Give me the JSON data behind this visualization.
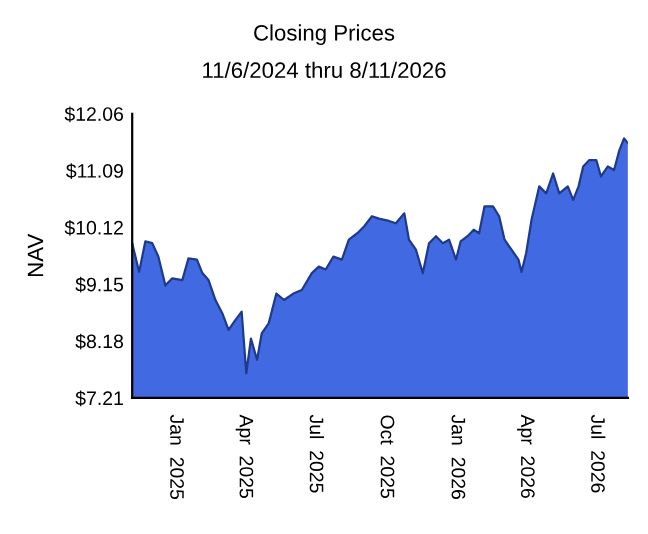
{
  "chart_data": {
    "type": "area",
    "title": "Closing Prices",
    "subtitle": "11/6/2024 thru 8/11/2026",
    "ylabel": "NAV",
    "x": [
      "2024-11-06",
      "2024-11-15",
      "2024-11-23",
      "2024-12-02",
      "2024-12-10",
      "2024-12-19",
      "2024-12-28",
      "2025-01-10",
      "2025-01-18",
      "2025-01-29",
      "2025-02-05",
      "2025-02-13",
      "2025-02-22",
      "2025-03-03",
      "2025-03-11",
      "2025-03-20",
      "2025-03-28",
      "2025-04-03",
      "2025-04-09",
      "2025-04-17",
      "2025-04-23",
      "2025-05-02",
      "2025-05-12",
      "2025-05-22",
      "2025-06-03",
      "2025-06-14",
      "2025-06-27",
      "2025-07-06",
      "2025-07-15",
      "2025-07-25",
      "2025-08-05",
      "2025-08-14",
      "2025-08-25",
      "2025-09-03",
      "2025-09-13",
      "2025-09-22",
      "2025-10-05",
      "2025-10-14",
      "2025-10-25",
      "2025-10-31",
      "2025-11-09",
      "2025-11-18",
      "2025-11-26",
      "2025-12-05",
      "2025-12-14",
      "2025-12-22",
      "2025-12-31",
      "2026-01-06",
      "2026-01-15",
      "2026-01-23",
      "2026-01-30",
      "2026-02-06",
      "2026-02-17",
      "2026-02-25",
      "2026-03-04",
      "2026-03-13",
      "2026-03-22",
      "2026-03-26",
      "2026-04-01",
      "2026-04-08",
      "2026-04-18",
      "2026-04-27",
      "2026-05-06",
      "2026-05-14",
      "2026-05-25",
      "2026-06-01",
      "2026-06-08",
      "2026-06-14",
      "2026-06-22",
      "2026-07-01",
      "2026-07-07",
      "2026-07-16",
      "2026-07-24",
      "2026-07-31",
      "2026-08-06",
      "2026-08-11"
    ],
    "series": [
      {
        "color": "#4169e1",
        "values": [
          9.85,
          9.36,
          9.88,
          9.85,
          9.62,
          9.13,
          9.25,
          9.22,
          9.59,
          9.57,
          9.34,
          9.22,
          8.88,
          8.65,
          8.37,
          8.54,
          8.68,
          7.63,
          8.22,
          7.86,
          8.31,
          8.48,
          8.99,
          8.88,
          8.99,
          9.05,
          9.34,
          9.45,
          9.4,
          9.62,
          9.57,
          9.91,
          10.02,
          10.14,
          10.31,
          10.27,
          10.23,
          10.19,
          10.36,
          9.91,
          9.74,
          9.34,
          9.85,
          9.97,
          9.85,
          9.91,
          9.57,
          9.88,
          9.97,
          10.08,
          10.02,
          10.48,
          10.48,
          10.31,
          9.91,
          9.74,
          9.57,
          9.36,
          9.68,
          10.25,
          10.82,
          10.7,
          11.04,
          10.7,
          10.82,
          10.59,
          10.82,
          11.16,
          11.27,
          11.27,
          10.99,
          11.16,
          11.1,
          11.44,
          11.64,
          11.56
        ]
      }
    ],
    "xlim": [
      "2024-11-06",
      "2026-08-11"
    ],
    "xticks": [
      {
        "value": "2025-01-01",
        "label": "Jan  2025"
      },
      {
        "value": "2025-04-01",
        "label": "Apr  2025"
      },
      {
        "value": "2025-07-01",
        "label": "Jul  2025"
      },
      {
        "value": "2025-10-01",
        "label": "Oct  2025"
      },
      {
        "value": "2026-01-01",
        "label": "Jan  2026"
      },
      {
        "value": "2026-04-01",
        "label": "Apr  2026"
      },
      {
        "value": "2026-07-01",
        "label": "Jul  2026"
      }
    ],
    "ylim": [
      7.21,
      12.06
    ],
    "yticks": [
      {
        "value": 7.21,
        "label": "$7.21"
      },
      {
        "value": 8.18,
        "label": "$8.18"
      },
      {
        "value": 9.15,
        "label": "$9.15"
      },
      {
        "value": 10.12,
        "label": "$10.12"
      },
      {
        "value": 11.09,
        "label": "$11.09"
      },
      {
        "value": 12.06,
        "label": "$12.06"
      }
    ]
  }
}
